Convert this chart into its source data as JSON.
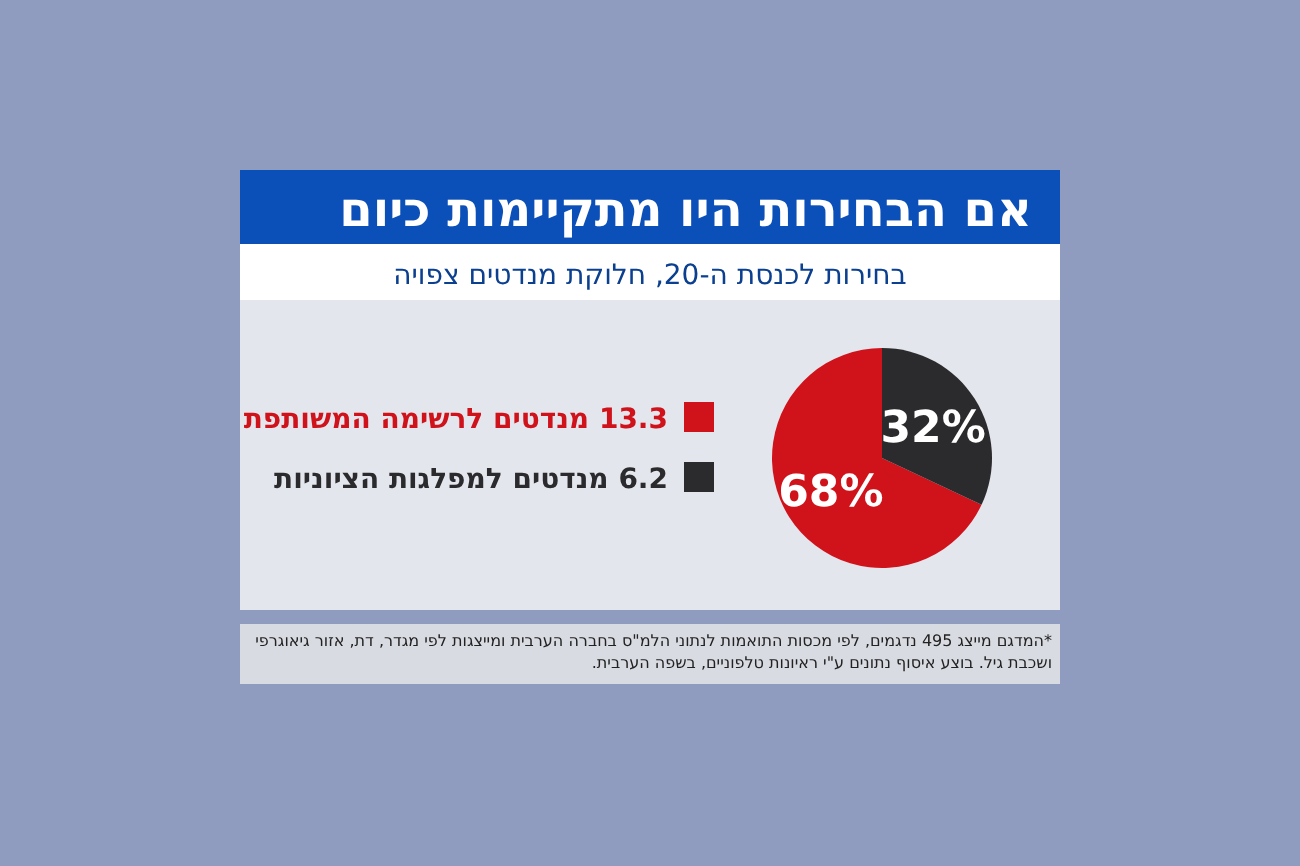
{
  "chart_data": {
    "type": "pie",
    "title": "אם הבחירות היו מתקיימות כיום",
    "subtitle": "בחירות לכנסת ה-20, חלוקת מנדטים צפויה",
    "categories": [
      "13.3 מנדטים לרשימה המשותפת",
      "6.2 מנדטים למפלגות הציוניות"
    ],
    "values": [
      68,
      32
    ],
    "value_labels": [
      "68%",
      "32%"
    ],
    "colors": [
      "#d0121b",
      "#2b2b2d"
    ],
    "legend": "left",
    "annotations": [
      "*המדגם מייצג 495 נדגמים, לפי מכסות התואמות לנתוני הלמ\"ס בחברה הערבית ומייצגות לפי מגדר, דת, אזור גיאוגרפי ושכבת גיל. בוצע איסוף נתונים ע\"י ראיונות טלפוניים, בשפה הערבית."
    ]
  }
}
